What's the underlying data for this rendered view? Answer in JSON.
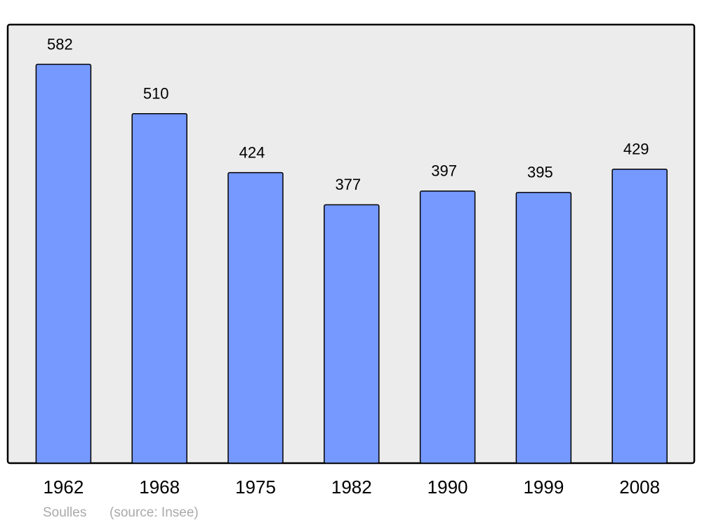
{
  "chart_data": {
    "type": "bar",
    "title": "Soulles",
    "source": "(source: Insee)",
    "categories": [
      "1962",
      "1968",
      "1975",
      "1982",
      "1990",
      "1999",
      "2008"
    ],
    "values": [
      582,
      510,
      424,
      377,
      397,
      395,
      429
    ],
    "color": "#7599ff",
    "ylim": [
      0,
      640
    ]
  }
}
